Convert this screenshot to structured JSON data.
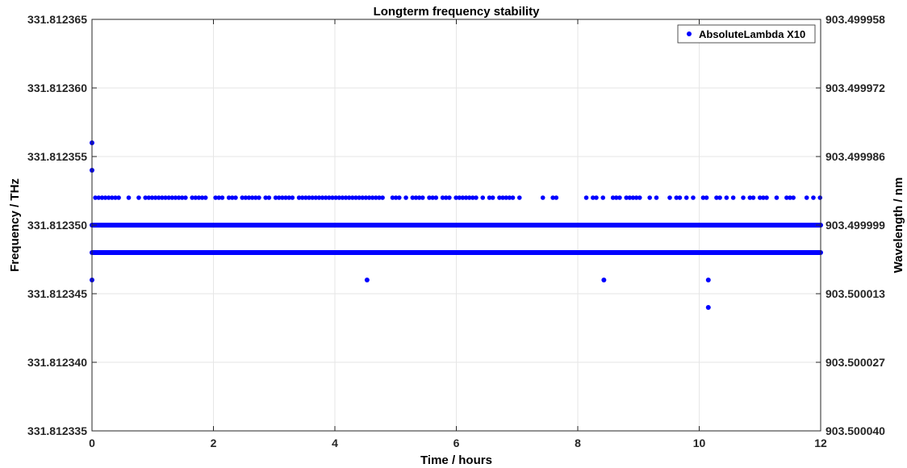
{
  "chart_data": {
    "type": "scatter",
    "title": "Longterm frequency stability",
    "xlabel": "Time / hours",
    "ylabel": "Frequency / THz",
    "ylabel_right": "Wavelength / nm",
    "xlim": [
      0,
      12
    ],
    "ylim": [
      331.812335,
      331.812365
    ],
    "x_ticks": [
      "0",
      "2",
      "4",
      "6",
      "8",
      "10",
      "12"
    ],
    "y_ticks": [
      "331.812335",
      "331.812340",
      "331.812345",
      "331.812350",
      "331.812355",
      "331.812360",
      "331.812365"
    ],
    "y_right_ticks": [
      "903.500040",
      "903.500027",
      "903.500013",
      "903.499999",
      "903.499986",
      "903.499972",
      "903.499958"
    ],
    "grid": true,
    "legend_position": "top-right",
    "colors": {
      "series": "#0000ff",
      "grid": "#e6e6e6",
      "axis": "#262626"
    },
    "series": [
      {
        "name": "AbsoluteLambda X10",
        "bands": [
          {
            "y": 331.81235,
            "x_start": 0,
            "x_end": 12,
            "continuous": true
          },
          {
            "y": 331.812348,
            "x_start": 0,
            "x_end": 12,
            "continuous": true
          },
          {
            "y": 331.812352,
            "x_start": 0,
            "x_end": 12,
            "continuous": false,
            "gaps": [
              [
                7.05,
                7.3
              ],
              [
                7.8,
                7.88
              ]
            ]
          }
        ],
        "points": [
          {
            "x": 0.0,
            "y": 331.812356
          },
          {
            "x": 0.0,
            "y": 331.812354
          },
          {
            "x": 0.0,
            "y": 331.812346
          },
          {
            "x": 4.53,
            "y": 331.812346
          },
          {
            "x": 8.43,
            "y": 331.812346
          },
          {
            "x": 10.15,
            "y": 331.812346
          },
          {
            "x": 10.15,
            "y": 331.812344
          }
        ]
      }
    ]
  }
}
